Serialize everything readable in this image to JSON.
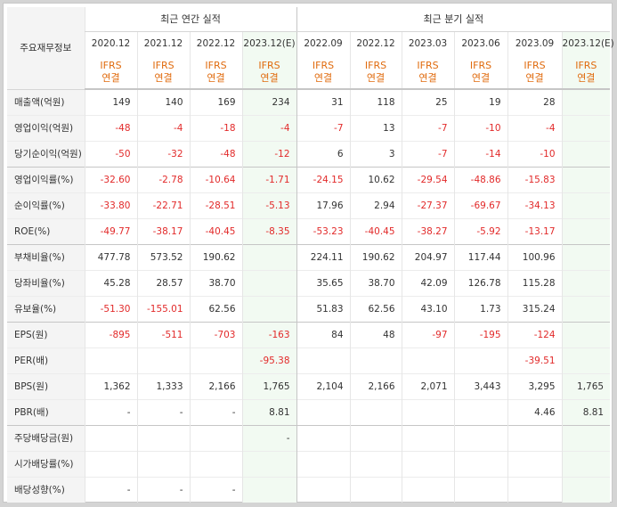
{
  "header": {
    "label_column": "주요재무정보",
    "annual_title": "최근 연간 실적",
    "quarterly_title": "최근 분기 실적"
  },
  "periods": [
    {
      "label": "2020.12",
      "source": [
        "IFRS",
        "연결"
      ],
      "estimate": false,
      "group": "annual"
    },
    {
      "label": "2021.12",
      "source": [
        "IFRS",
        "연결"
      ],
      "estimate": false,
      "group": "annual"
    },
    {
      "label": "2022.12",
      "source": [
        "IFRS",
        "연결"
      ],
      "estimate": false,
      "group": "annual"
    },
    {
      "label": "2023.12(E)",
      "source": [
        "IFRS",
        "연결"
      ],
      "estimate": true,
      "group": "annual"
    },
    {
      "label": "2022.09",
      "source": [
        "IFRS",
        "연결"
      ],
      "estimate": false,
      "group": "quarter"
    },
    {
      "label": "2022.12",
      "source": [
        "IFRS",
        "연결"
      ],
      "estimate": false,
      "group": "quarter"
    },
    {
      "label": "2023.03",
      "source": [
        "IFRS",
        "연결"
      ],
      "estimate": false,
      "group": "quarter"
    },
    {
      "label": "2023.06",
      "source": [
        "IFRS",
        "연결"
      ],
      "estimate": false,
      "group": "quarter"
    },
    {
      "label": "2023.09",
      "source": [
        "IFRS",
        "연결"
      ],
      "estimate": false,
      "group": "quarter"
    },
    {
      "label": "2023.12(E)",
      "source": [
        "IFRS",
        "연결"
      ],
      "estimate": true,
      "group": "quarter"
    }
  ],
  "rows": [
    {
      "label": "매출액(억원)",
      "group_start": true,
      "values": [
        "149",
        "140",
        "169",
        "234",
        "31",
        "118",
        "25",
        "19",
        "28",
        ""
      ]
    },
    {
      "label": "영업이익(억원)",
      "group_start": false,
      "values": [
        "-48",
        "-4",
        "-18",
        "-4",
        "-7",
        "13",
        "-7",
        "-10",
        "-4",
        ""
      ]
    },
    {
      "label": "당기순이익(억원)",
      "group_start": false,
      "values": [
        "-50",
        "-32",
        "-48",
        "-12",
        "6",
        "3",
        "-7",
        "-14",
        "-10",
        ""
      ]
    },
    {
      "label": "영업이익률(%)",
      "group_start": true,
      "values": [
        "-32.60",
        "-2.78",
        "-10.64",
        "-1.71",
        "-24.15",
        "10.62",
        "-29.54",
        "-48.86",
        "-15.83",
        ""
      ]
    },
    {
      "label": "순이익률(%)",
      "group_start": false,
      "values": [
        "-33.80",
        "-22.71",
        "-28.51",
        "-5.13",
        "17.96",
        "2.94",
        "-27.37",
        "-69.67",
        "-34.13",
        ""
      ]
    },
    {
      "label": "ROE(%)",
      "group_start": false,
      "values": [
        "-49.77",
        "-38.17",
        "-40.45",
        "-8.35",
        "-53.23",
        "-40.45",
        "-38.27",
        "-5.92",
        "-13.17",
        ""
      ]
    },
    {
      "label": "부채비율(%)",
      "group_start": true,
      "values": [
        "477.78",
        "573.52",
        "190.62",
        "",
        "224.11",
        "190.62",
        "204.97",
        "117.44",
        "100.96",
        ""
      ]
    },
    {
      "label": "당좌비율(%)",
      "group_start": false,
      "values": [
        "45.28",
        "28.57",
        "38.70",
        "",
        "35.65",
        "38.70",
        "42.09",
        "126.78",
        "115.28",
        ""
      ]
    },
    {
      "label": "유보율(%)",
      "group_start": false,
      "values": [
        "-51.30",
        "-155.01",
        "62.56",
        "",
        "51.83",
        "62.56",
        "43.10",
        "1.73",
        "315.24",
        ""
      ]
    },
    {
      "label": "EPS(원)",
      "group_start": true,
      "values": [
        "-895",
        "-511",
        "-703",
        "-163",
        "84",
        "48",
        "-97",
        "-195",
        "-124",
        ""
      ]
    },
    {
      "label": "PER(배)",
      "group_start": false,
      "values": [
        "",
        "",
        "",
        "-95.38",
        "",
        "",
        "",
        "",
        "-39.51",
        ""
      ]
    },
    {
      "label": "BPS(원)",
      "group_start": false,
      "values": [
        "1,362",
        "1,333",
        "2,166",
        "1,765",
        "2,104",
        "2,166",
        "2,071",
        "3,443",
        "3,295",
        "1,765"
      ]
    },
    {
      "label": "PBR(배)",
      "group_start": false,
      "values": [
        "-",
        "-",
        "-",
        "8.81",
        "",
        "",
        "",
        "",
        "4.46",
        "8.81"
      ]
    },
    {
      "label": "주당배당금(원)",
      "group_start": true,
      "values": [
        "",
        "",
        "",
        "-",
        "",
        "",
        "",
        "",
        "",
        ""
      ]
    },
    {
      "label": "시가배당률(%)",
      "group_start": false,
      "values": [
        "",
        "",
        "",
        "",
        "",
        "",
        "",
        "",
        "",
        ""
      ]
    },
    {
      "label": "배당성향(%)",
      "group_start": false,
      "values": [
        "-",
        "-",
        "-",
        "",
        "",
        "",
        "",
        "",
        "",
        ""
      ]
    }
  ],
  "colors": {
    "negative": "#e22a2a",
    "source": "#e06b0e",
    "estimate_bg": "#f2faf2"
  }
}
